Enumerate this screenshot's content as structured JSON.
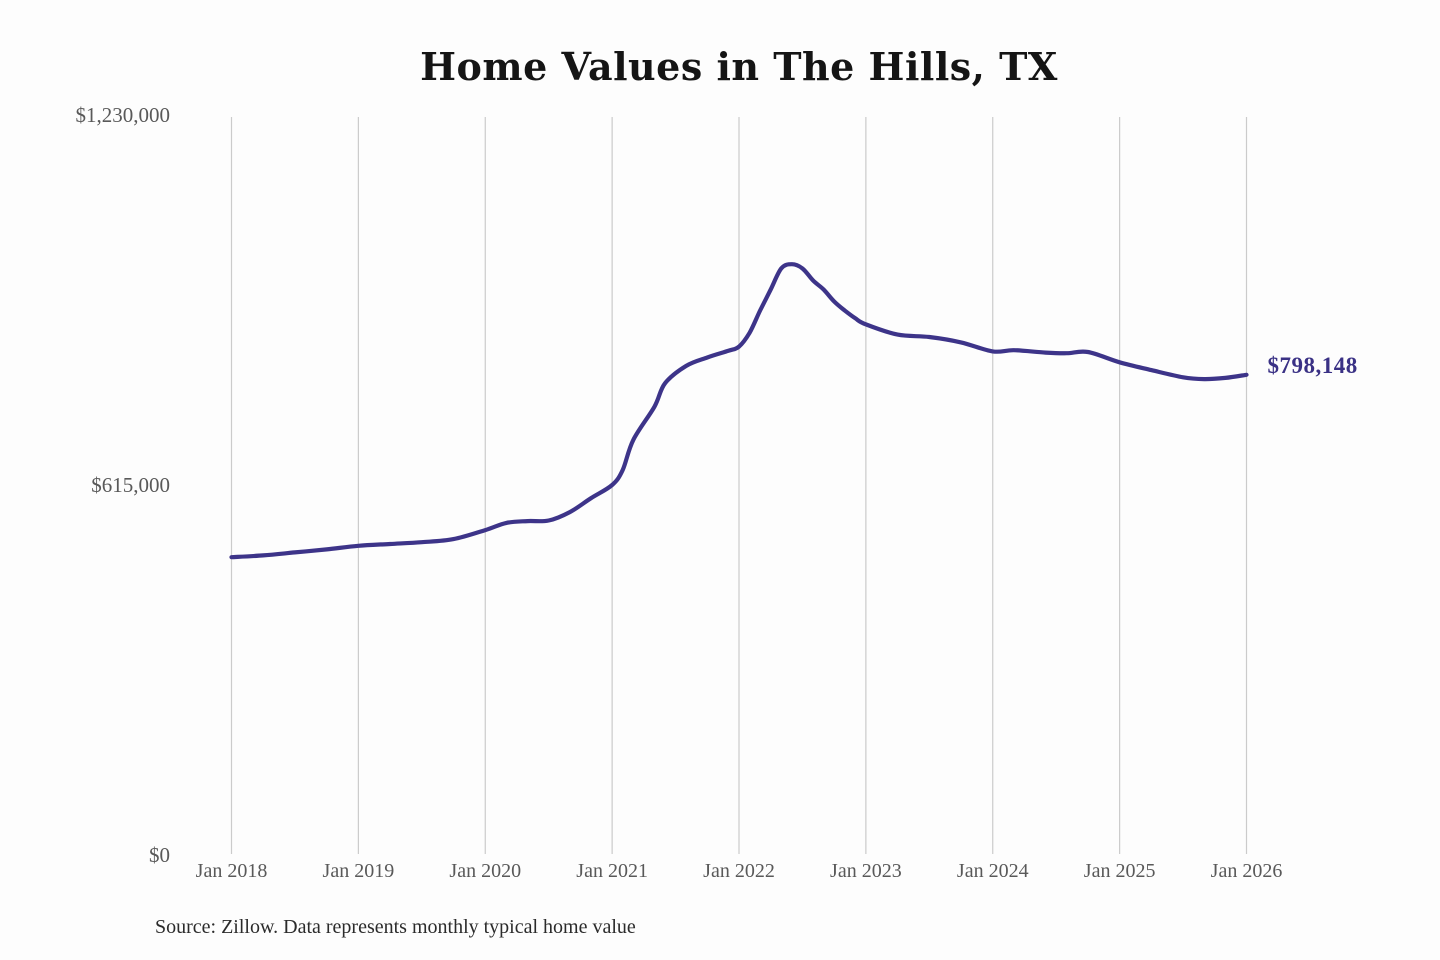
{
  "page": {
    "title": "Home Values in The Hills, TX",
    "source_note": "Source: Zillow. Data represents monthly typical home value"
  },
  "colors": {
    "line": "#3d3489",
    "annotation_text": "#3a3185",
    "grid": "#cbcbcb",
    "tick_text": "#595959",
    "title_text": "#151515",
    "source_text": "#2b2b2b",
    "background": "#fdfdfd"
  },
  "chart_data": {
    "type": "line",
    "title": "Home Values in The Hills, TX",
    "xlabel": "",
    "ylabel": "",
    "grid": "vertical-only",
    "legend": "none",
    "ylim": [
      0,
      1230000
    ],
    "y_ticks": [
      0,
      615000,
      1230000
    ],
    "y_tick_labels": [
      "$0",
      "$615,000",
      "$1,230,000"
    ],
    "x_tick_years": [
      2018,
      2019,
      2020,
      2021,
      2022,
      2023,
      2024,
      2025,
      2026
    ],
    "x_tick_labels": [
      "Jan 2018",
      "Jan 2019",
      "Jan 2020",
      "Jan 2021",
      "Jan 2022",
      "Jan 2023",
      "Jan 2024",
      "Jan 2025",
      "Jan 2026"
    ],
    "end_annotation": {
      "label": "$798,148",
      "date": "2026-01",
      "value": 798148
    },
    "series": [
      {
        "name": "Monthly typical home value",
        "points": [
          [
            "2018-01",
            495000
          ],
          [
            "2018-04",
            498000
          ],
          [
            "2018-07",
            503000
          ],
          [
            "2018-10",
            508000
          ],
          [
            "2019-01",
            514000
          ],
          [
            "2019-04",
            517000
          ],
          [
            "2019-07",
            520000
          ],
          [
            "2019-10",
            525000
          ],
          [
            "2020-01",
            540000
          ],
          [
            "2020-03",
            552000
          ],
          [
            "2020-05",
            555000
          ],
          [
            "2020-07",
            556000
          ],
          [
            "2020-09",
            570000
          ],
          [
            "2020-11",
            593000
          ],
          [
            "2021-01",
            615000
          ],
          [
            "2021-02",
            640000
          ],
          [
            "2021-03",
            690000
          ],
          [
            "2021-05",
            745000
          ],
          [
            "2021-06",
            784000
          ],
          [
            "2021-08",
            813000
          ],
          [
            "2021-10",
            827000
          ],
          [
            "2021-12",
            838000
          ],
          [
            "2022-01",
            845000
          ],
          [
            "2022-02",
            868000
          ],
          [
            "2022-03",
            905000
          ],
          [
            "2022-04",
            940000
          ],
          [
            "2022-05",
            975000
          ],
          [
            "2022-06",
            982000
          ],
          [
            "2022-07",
            975000
          ],
          [
            "2022-08",
            955000
          ],
          [
            "2022-09",
            940000
          ],
          [
            "2022-10",
            920000
          ],
          [
            "2022-11",
            905000
          ],
          [
            "2022-12",
            892000
          ],
          [
            "2023-01",
            882000
          ],
          [
            "2023-04",
            865000
          ],
          [
            "2023-07",
            861000
          ],
          [
            "2023-10",
            852000
          ],
          [
            "2024-01",
            837000
          ],
          [
            "2024-03",
            839000
          ],
          [
            "2024-06",
            835000
          ],
          [
            "2024-08",
            834000
          ],
          [
            "2024-10",
            836000
          ],
          [
            "2025-01",
            819000
          ],
          [
            "2025-04",
            806000
          ],
          [
            "2025-07",
            794000
          ],
          [
            "2025-09",
            791000
          ],
          [
            "2025-11",
            793000
          ],
          [
            "2026-01",
            798148
          ]
        ]
      }
    ]
  }
}
